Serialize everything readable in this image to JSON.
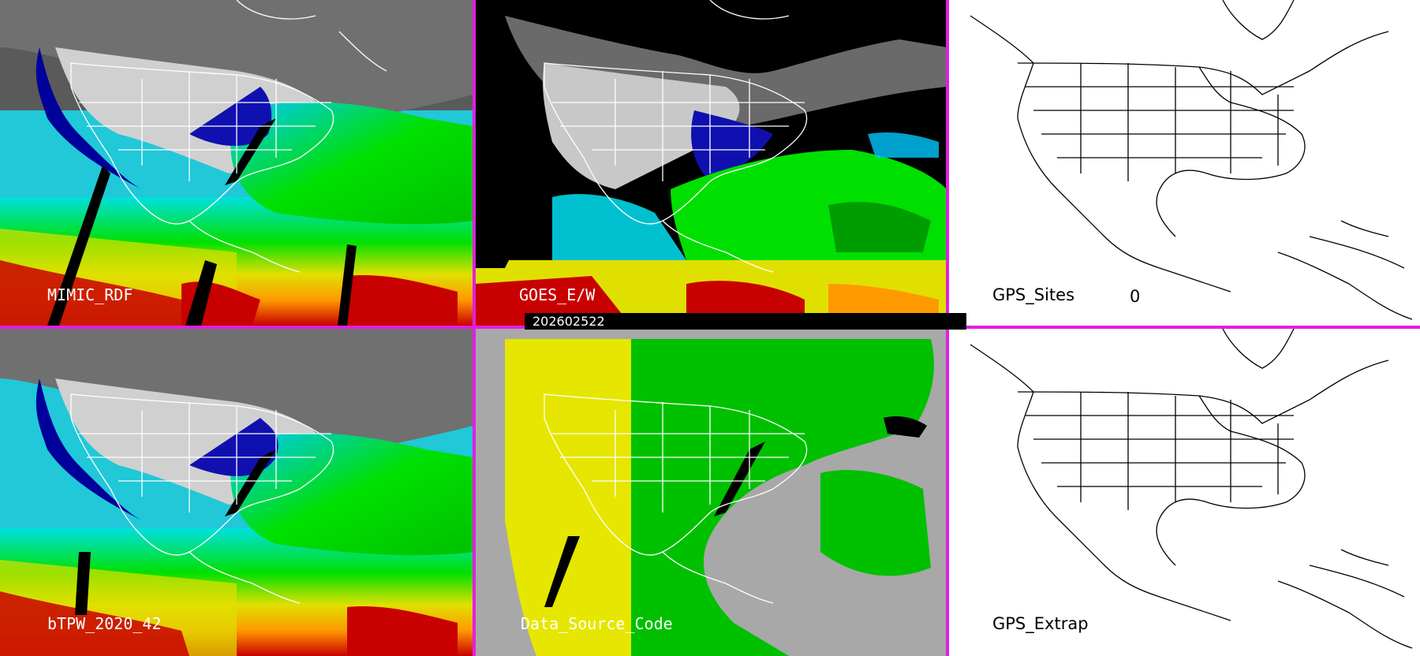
{
  "panels": [
    {
      "label": "MIMIC_RDF",
      "style": "tpw"
    },
    {
      "label": "GOES_E/W",
      "style": "goes"
    },
    {
      "label": "GPS_Sites",
      "style": "blank",
      "count": "0"
    },
    {
      "label": "bTPW_2020_42",
      "style": "tpw"
    },
    {
      "label": "Data_Source_Code",
      "style": "source"
    },
    {
      "label": "GPS_Extrap",
      "style": "blank"
    }
  ],
  "timestamp": "202602522",
  "colors": {
    "divider": "#e020e0",
    "tpw_scale": [
      "#000000",
      "#00009a",
      "#3355ff",
      "#00e0e0",
      "#00c8ff",
      "#00e000",
      "#60ff00",
      "#e0e000",
      "#ff9900",
      "#c80000"
    ],
    "source_yellow": "#e6e600",
    "source_green": "#00c000",
    "source_gray": "#a8a8a8"
  }
}
